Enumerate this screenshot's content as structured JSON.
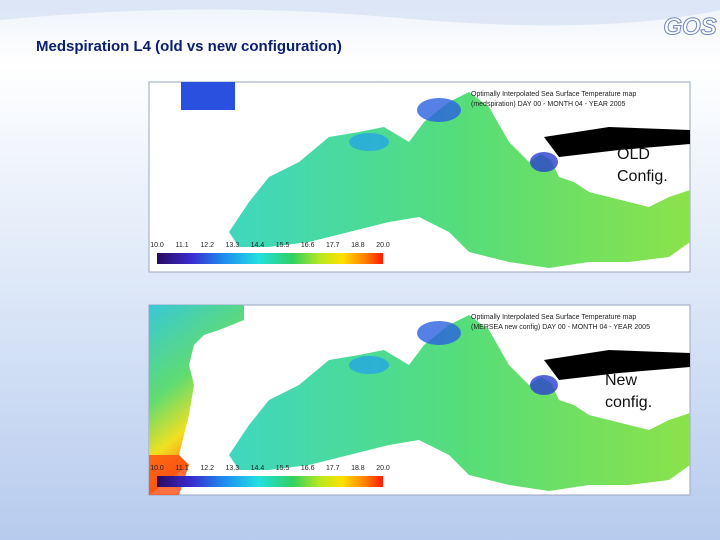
{
  "title": "Medspiration L4 (old vs new configuration)",
  "logo": "GOS",
  "panels": [
    {
      "header": [
        "Optimally Interpolated Sea Surface Temperature map",
        "(medspiration) DAY 00 - MONTH 04 - YEAR 2005"
      ],
      "annotation": [
        "OLD",
        "Config."
      ],
      "colorbar": [
        "10.0",
        "11.1",
        "12.2",
        "13.3",
        "14.4",
        "15.5",
        "16.6",
        "17.7",
        "18.8",
        "20.0"
      ]
    },
    {
      "header": [
        "Optimally Interpolated Sea Surface Temperature map",
        "(MERSEA new config) DAY 00 - MONTH 04 - YEAR 2005"
      ],
      "annotation": [
        "New",
        "config."
      ],
      "colorbar": [
        "10.0",
        "11.1",
        "12.2",
        "13.3",
        "14.4",
        "15.5",
        "16.6",
        "17.7",
        "18.8",
        "20.0"
      ]
    }
  ]
}
